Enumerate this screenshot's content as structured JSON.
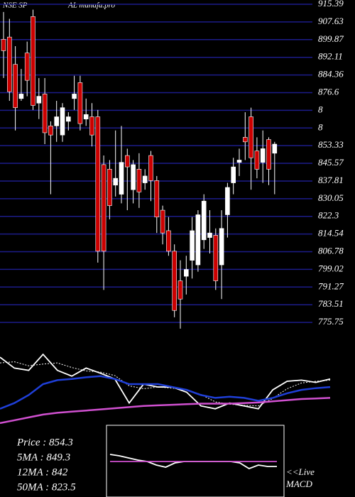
{
  "chart_data": [
    {
      "type": "candlestick",
      "title": [
        "NSE SP",
        "AL munafa.pro"
      ],
      "up_color": "#ffffff",
      "down_color": "#cc0000",
      "grid": true,
      "grid_color": "#1c1c8a",
      "ylim": [
        764.56,
        917.26
      ],
      "yticks": [
        915.39,
        907.63,
        899.87,
        892.11,
        884.36,
        876.6,
        {
          "value": 868.84,
          "label": "8"
        },
        {
          "value": 861.08,
          "label": "8"
        },
        853.33,
        845.57,
        837.81,
        830.05,
        822.3,
        814.54,
        806.78,
        799.02,
        791.27,
        783.51,
        775.75
      ],
      "open": [
        900,
        901,
        889,
        874,
        894,
        910,
        872,
        876,
        862,
        862,
        858,
        864,
        874,
        881,
        865,
        866,
        866,
        845,
        843,
        836,
        832,
        849,
        834,
        843,
        837,
        849,
        838,
        825,
        816,
        807,
        794,
        796,
        803,
        801,
        812,
        813,
        814,
        801,
        823,
        837,
        846,
        857,
        866,
        851,
        846,
        856,
        850
      ],
      "high": [
        912,
        909,
        897,
        887,
        899,
        913,
        883,
        883,
        864,
        873,
        872,
        868,
        884,
        884,
        874,
        872,
        869,
        849,
        847,
        860,
        862,
        852,
        847,
        850,
        843,
        851,
        840,
        827,
        822,
        810,
        803,
        805,
        822,
        825,
        832,
        825,
        817,
        825,
        837,
        848,
        852,
        868,
        870,
        857,
        860,
        857,
        855
      ],
      "low": [
        883,
        873,
        860,
        873,
        875,
        869,
        865,
        854,
        832,
        855,
        855,
        860,
        869,
        860,
        862,
        853,
        802,
        790,
        821,
        831,
        828,
        825,
        828,
        826,
        834,
        829,
        815,
        810,
        805,
        778,
        773,
        788,
        795,
        798,
        808,
        806,
        790,
        786,
        813,
        832,
        840,
        847,
        834,
        839,
        837,
        836,
        832
      ],
      "close": [
        895,
        877,
        870,
        876,
        882,
        871,
        875,
        859,
        858,
        866,
        870,
        866,
        876,
        863,
        867,
        858,
        807,
        807,
        827,
        839,
        846,
        844,
        845,
        833,
        840,
        838,
        822,
        815,
        807,
        781,
        786,
        799,
        816,
        823,
        829,
        815,
        794,
        817,
        835,
        844,
        847,
        855,
        848,
        843,
        852,
        843,
        854
      ]
    },
    {
      "type": "line",
      "ylim": [
        -30,
        100
      ],
      "series": [
        {
          "color": "#ffffff",
          "style": "solid",
          "values": [
            90,
            71,
            67,
            95,
            67,
            57,
            71,
            62,
            52,
            10,
            43,
            38,
            38,
            29,
            5,
            0,
            10,
            5,
            0,
            33,
            48,
            50,
            46,
            52
          ]
        },
        {
          "color": "#ffffff",
          "style": "dotted",
          "values": [
            80,
            82,
            75,
            78,
            80,
            72,
            66,
            64,
            58,
            40,
            35,
            38,
            36,
            33,
            25,
            12,
            8,
            6,
            5,
            18,
            35,
            45,
            48,
            50
          ]
        },
        {
          "color": "#1f3fd8",
          "style": "thick",
          "values": [
            0,
            10,
            24,
            43,
            50,
            52,
            55,
            57,
            52,
            43,
            43,
            43,
            38,
            33,
            24,
            19,
            21,
            19,
            14,
            19,
            27,
            33,
            36,
            38
          ]
        },
        {
          "color": "#d050d0",
          "style": "thick",
          "values": [
            -25,
            -20,
            -15,
            -10,
            -7,
            -5,
            -3,
            -1,
            1,
            3,
            5,
            6,
            7,
            8,
            9,
            9,
            9,
            10,
            11,
            13,
            15,
            17,
            18,
            19
          ]
        }
      ],
      "annotations": [
        "Price  : 854.3",
        "5MA : 849.3",
        "12MA : 842",
        "50MA : 823.5"
      ]
    },
    {
      "type": "line",
      "ylim": [
        -50,
        50
      ],
      "title": [
        "<<Live",
        "MACD"
      ],
      "series": [
        {
          "color": "#ffffff",
          "style": "solid",
          "values": [
            10,
            8,
            5,
            2,
            0,
            -5,
            -8,
            -2,
            0,
            0,
            0,
            0,
            0,
            0,
            -2,
            -10,
            -5,
            -7,
            -7
          ]
        },
        {
          "color": "#d050d0",
          "style": "solid",
          "values": [
            0,
            0,
            0,
            0,
            0,
            0,
            0,
            0,
            0,
            0,
            0,
            0,
            0,
            0,
            0,
            0,
            0,
            0,
            0
          ]
        }
      ]
    }
  ]
}
